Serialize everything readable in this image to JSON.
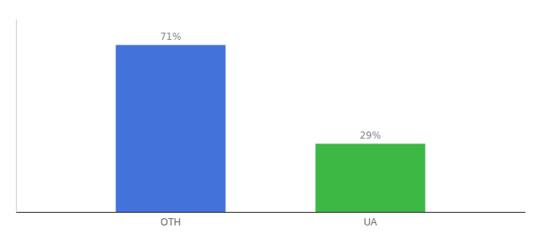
{
  "chart_data": {
    "type": "bar",
    "categories": [
      "OTH",
      "UA"
    ],
    "values": [
      71,
      29
    ],
    "value_labels": [
      "71%",
      "29%"
    ],
    "colors": [
      "#4472db",
      "#3cb844"
    ],
    "ylim": [
      0,
      82
    ],
    "data_labels": true,
    "tick_labels": "x",
    "grid": false
  }
}
